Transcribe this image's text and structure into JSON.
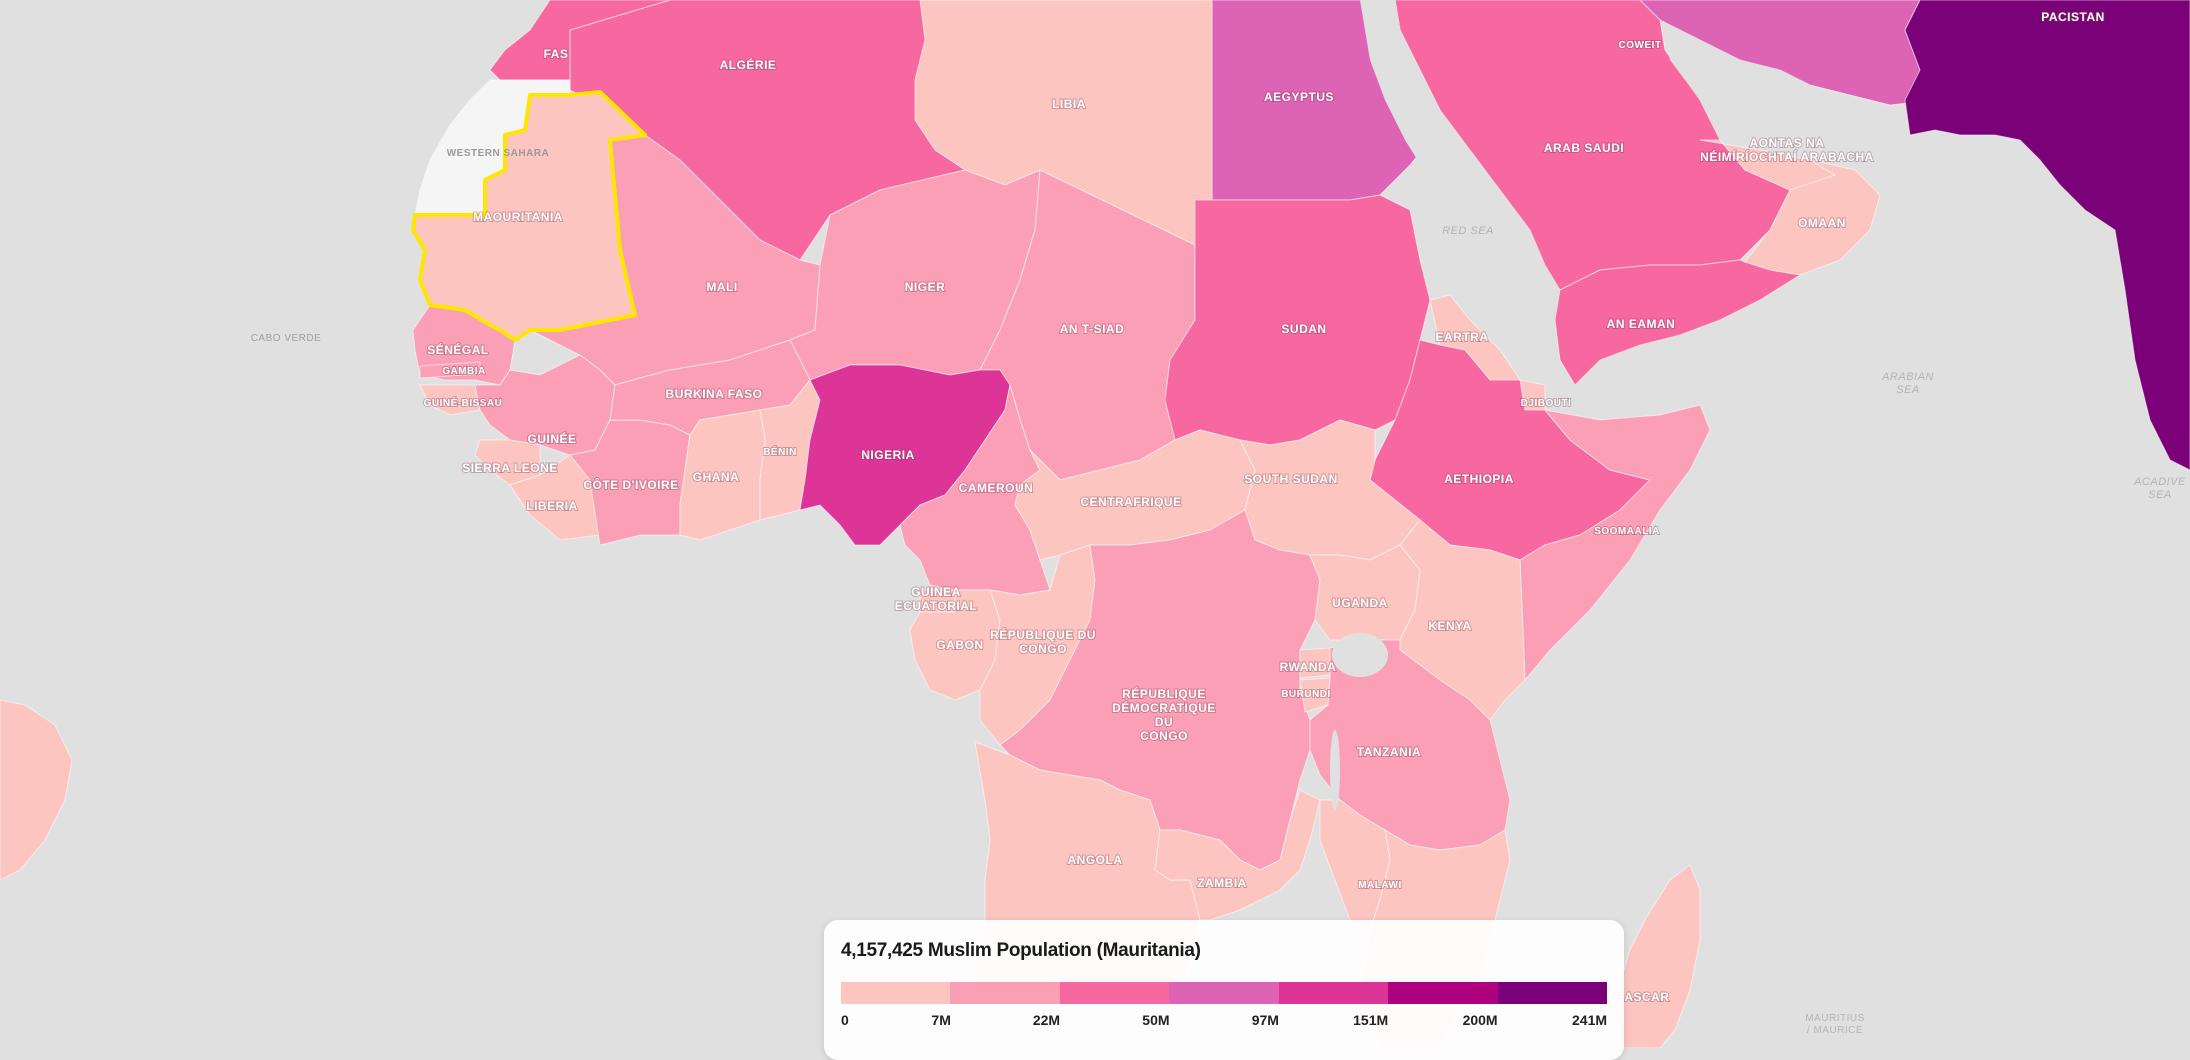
{
  "map": {
    "highlight_color": "#ffe600",
    "countries": [
      {
        "id": "fas",
        "label": "FAS",
        "fill": "#f768a1"
      },
      {
        "id": "algerie",
        "label": "ALGÉRIE",
        "fill": "#f768a1"
      },
      {
        "id": "libia",
        "label": "LIBIA",
        "fill": "#fcc5c0"
      },
      {
        "id": "aegyptus",
        "label": "AEGYPTUS",
        "fill": "#dd63b5"
      },
      {
        "id": "arab-saudi",
        "label": "ARAB SAUDI",
        "fill": "#f768a1"
      },
      {
        "id": "western-sahara",
        "label": "WESTERN SAHARA",
        "fill": "#f5f5f5"
      },
      {
        "id": "maouritania",
        "label": "MAOURITANIA",
        "fill": "#fcc5c0"
      },
      {
        "id": "mali",
        "label": "MALI",
        "fill": "#fa9fb5"
      },
      {
        "id": "niger",
        "label": "NIGER",
        "fill": "#fa9fb5"
      },
      {
        "id": "an-t-siad",
        "label": "AN T-SIAD",
        "fill": "#fa9fb5"
      },
      {
        "id": "sudan",
        "label": "SUDAN",
        "fill": "#f768a1"
      },
      {
        "id": "senegal",
        "label": "SÉNÉGAL",
        "fill": "#fa9fb5"
      },
      {
        "id": "gambia",
        "label": "GAMBIA",
        "fill": "#fa9fb5"
      },
      {
        "id": "guine-bissau",
        "label": "GUINÉ-BISSAU",
        "fill": "#fcc5c0"
      },
      {
        "id": "guinee",
        "label": "GUINÉE",
        "fill": "#fa9fb5"
      },
      {
        "id": "sierra-leone",
        "label": "SIERRA LEONE",
        "fill": "#fcc5c0"
      },
      {
        "id": "liberia",
        "label": "LIBERIA",
        "fill": "#fcc5c0"
      },
      {
        "id": "cote-divoire",
        "label": "CÔTE D'IVOIRE",
        "fill": "#fa9fb5"
      },
      {
        "id": "burkina-faso",
        "label": "BURKINA FASO",
        "fill": "#fa9fb5"
      },
      {
        "id": "ghana",
        "label": "GHANA",
        "fill": "#fcc5c0"
      },
      {
        "id": "benin",
        "label": "BÉNIN",
        "fill": "#fcc5c0"
      },
      {
        "id": "nigeria",
        "label": "NIGERIA",
        "fill": "#dd3497"
      },
      {
        "id": "cameroun",
        "label": "CAMEROUN",
        "fill": "#fa9fb5"
      },
      {
        "id": "centrafrique",
        "label": "CENTRAFRIQUE",
        "fill": "#fcc5c0"
      },
      {
        "id": "south-sudan",
        "label": "SOUTH SUDAN",
        "fill": "#fcc5c0"
      },
      {
        "id": "aethiopia",
        "label": "AETHIOPIA",
        "fill": "#f768a1"
      },
      {
        "id": "eartra",
        "label": "EARTRA",
        "fill": "#fcc5c0"
      },
      {
        "id": "djibouti",
        "label": "DJIBOUTI",
        "fill": "#fcc5c0"
      },
      {
        "id": "somaalia",
        "label": "SOOMAALIA",
        "fill": "#fa9fb5"
      },
      {
        "id": "an-eaman",
        "label": "AN EAMAN",
        "fill": "#f768a1"
      },
      {
        "id": "omaan",
        "label": "OMAAN",
        "fill": "#fcc5c0"
      },
      {
        "id": "uae",
        "label": "AONTAS NA NÉIMÍRÍOCHTAÍ ARABACHA",
        "fill": "#fcc5c0"
      },
      {
        "id": "coweit",
        "label": "COWEIT",
        "fill": "#fcc5c0"
      },
      {
        "id": "iran",
        "label": "",
        "fill": "#dd63b5"
      },
      {
        "id": "pakistan",
        "label": "PACISTAN",
        "fill": "#7a0177"
      },
      {
        "id": "guinea-ecuatorial",
        "label": "GUINEA ECUATORIAL",
        "fill": "#fcc5c0"
      },
      {
        "id": "gabon",
        "label": "GABON",
        "fill": "#fcc5c0"
      },
      {
        "id": "republique-du-congo",
        "label": "RÉPUBLIQUE DU CONGO",
        "fill": "#fcc5c0"
      },
      {
        "id": "rd-congo",
        "label": "RÉPUBLIQUE DÉMOCRATIQUE DU CONGO",
        "fill": "#fa9fb5"
      },
      {
        "id": "uganda",
        "label": "UGANDA",
        "fill": "#fcc5c0"
      },
      {
        "id": "kenya",
        "label": "KENYA",
        "fill": "#fcc5c0"
      },
      {
        "id": "rwanda",
        "label": "RWANDA",
        "fill": "#fcc5c0"
      },
      {
        "id": "burundi",
        "label": "BURUNDI",
        "fill": "#fcc5c0"
      },
      {
        "id": "tanzania",
        "label": "TANZANIA",
        "fill": "#fa9fb5"
      },
      {
        "id": "angola",
        "label": "ANGOLA",
        "fill": "#fcc5c0"
      },
      {
        "id": "zambia",
        "label": "ZAMBIA",
        "fill": "#fcc5c0"
      },
      {
        "id": "malawi",
        "label": "MALAWI",
        "fill": "#fcc5c0"
      },
      {
        "id": "mozambique",
        "label": "",
        "fill": "#fcc5c0"
      },
      {
        "id": "madagascar",
        "label": "GASCAR",
        "fill": "#fcc5c0"
      },
      {
        "id": "brazil",
        "label": "",
        "fill": "#fcc5c0"
      }
    ],
    "other_labels": {
      "cabo_verde": "CABO VERDE",
      "red_sea": "RED SEA",
      "arabian_sea": [
        "ARABIAN",
        "SEA"
      ],
      "maldives": [
        "ACADIVE",
        "SEA"
      ],
      "mauritius": [
        "MAURITIUS",
        "/ MAURICE"
      ]
    }
  },
  "legend": {
    "value_text": "4,157,425",
    "metric_text": "Muslim Population",
    "country_text": "(Mauritania)",
    "colors": [
      "#fcc5c0",
      "#fa9fb5",
      "#f768a1",
      "#dd63b5",
      "#dd3497",
      "#ae017e",
      "#7a0177"
    ],
    "ticks": [
      "0",
      "7M",
      "22M",
      "50M",
      "97M",
      "151M",
      "200M",
      "241M"
    ]
  }
}
